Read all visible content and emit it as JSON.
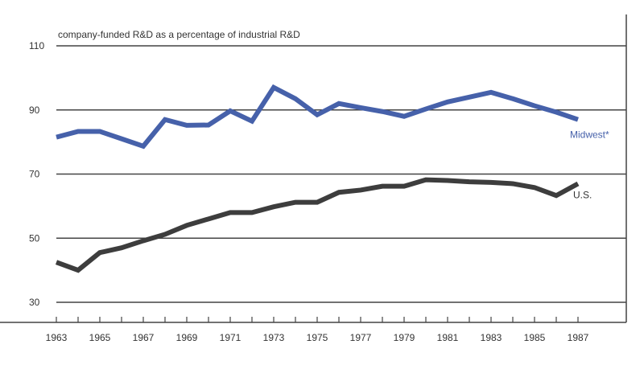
{
  "chart_data": {
    "type": "line",
    "title": "company-funded R&D as a percentage of industrial R&D",
    "xlabel": "",
    "ylabel": "",
    "ylim": [
      30,
      110
    ],
    "yticks": [
      30,
      50,
      70,
      90,
      110
    ],
    "xlim": [
      1963,
      1987
    ],
    "xticks": [
      1963,
      1965,
      1967,
      1969,
      1971,
      1973,
      1975,
      1977,
      1979,
      1981,
      1983,
      1985,
      1987
    ],
    "grid": true,
    "x": [
      1963,
      1964,
      1965,
      1966,
      1967,
      1968,
      1969,
      1970,
      1971,
      1972,
      1973,
      1974,
      1975,
      1976,
      1977,
      1978,
      1979,
      1980,
      1981,
      1982,
      1983,
      1984,
      1985,
      1986,
      1987
    ],
    "series": [
      {
        "name": "Midwest*",
        "color": "#4661aa",
        "values": [
          81.5,
          83.3,
          83.3,
          81,
          78.7,
          87,
          85.2,
          85.3,
          89.7,
          86.5,
          97,
          93.5,
          88.5,
          92,
          90.7,
          89.5,
          88,
          90.3,
          92.5,
          94,
          95.5,
          93.5,
          91.3,
          89.3,
          87
        ]
      },
      {
        "name": "U.S.",
        "color": "#3d3d3d",
        "values": [
          42.5,
          40,
          45.5,
          47,
          49.2,
          51.2,
          54,
          56,
          58,
          58,
          59.8,
          61.2,
          61.2,
          64.3,
          65,
          66.2,
          66.2,
          68.2,
          68,
          67.6,
          67.4,
          67,
          65.8,
          63.3,
          67
        ]
      }
    ]
  }
}
